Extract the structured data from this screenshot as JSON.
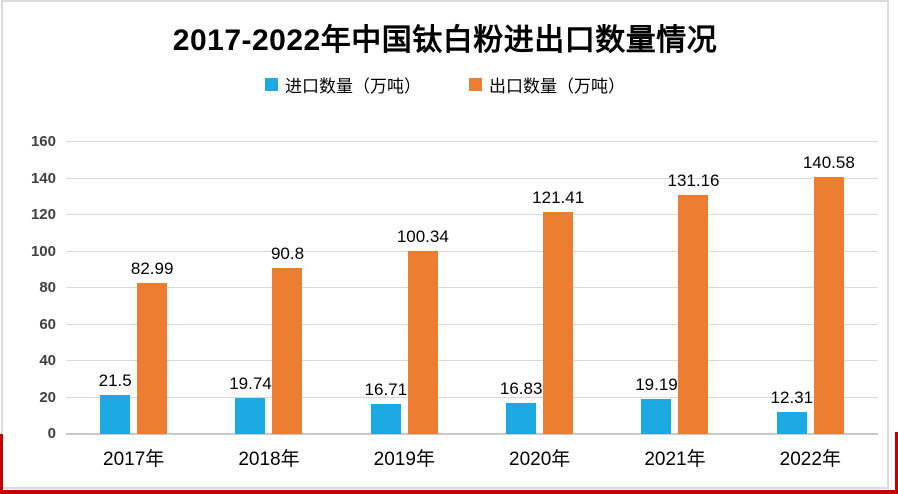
{
  "page": {
    "background": "#FFFFFF",
    "frame_border_color": "#DBDBDB",
    "red_border_color": "#C00000"
  },
  "chart_data": {
    "type": "bar",
    "title": "2017-2022年中国钛白粉进出口数量情况",
    "categories": [
      "2017年",
      "2018年",
      "2019年",
      "2020年",
      "2021年",
      "2022年"
    ],
    "series": [
      {
        "name": "进口数量（万吨）",
        "color": "#1DA9E1",
        "values": [
          21.5,
          19.74,
          16.71,
          16.83,
          19.19,
          12.31
        ]
      },
      {
        "name": "出口数量（万吨）",
        "color": "#ED7D31",
        "values": [
          82.99,
          90.8,
          100.34,
          121.41,
          131.16,
          140.58
        ]
      }
    ],
    "xlabel": "",
    "ylabel": "",
    "ylim": [
      0,
      160
    ],
    "yticks": [
      0,
      20,
      40,
      60,
      80,
      100,
      120,
      140,
      160
    ],
    "grid": true,
    "gridline_color": "#D9D9D9",
    "axis_line_color": "#C9C9C9",
    "ytick_label_color": "#404040",
    "legend_position": "top",
    "data_labels": true
  }
}
